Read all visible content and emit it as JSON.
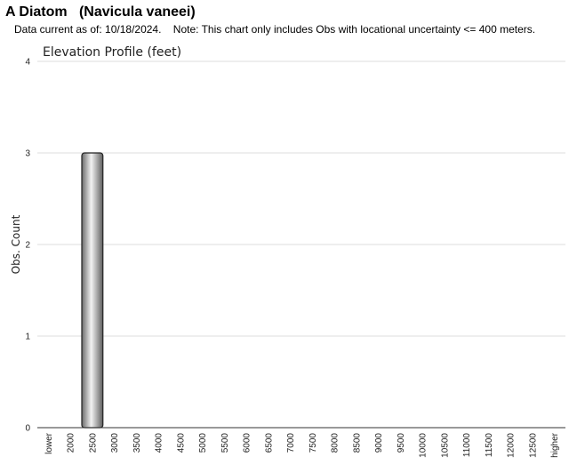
{
  "header": {
    "title": "A Diatom   (Navicula vaneei)",
    "subtitle": "Data current as of: 10/18/2024.    Note: This chart only includes Obs with locational uncertainty <= 400 meters."
  },
  "chart_data": {
    "type": "bar",
    "title": "Elevation Profile (feet)",
    "xlabel": "",
    "ylabel": "Obs. Count",
    "ylim": [
      0,
      4
    ],
    "yticks": [
      "0",
      "1",
      "2",
      "3",
      "4"
    ],
    "grid": true,
    "categories": [
      "lower",
      "2000",
      "2500",
      "3000",
      "3500",
      "4000",
      "4500",
      "5000",
      "5500",
      "6000",
      "6500",
      "7000",
      "7500",
      "8000",
      "8500",
      "9000",
      "9500",
      "10000",
      "10500",
      "11000",
      "11500",
      "12000",
      "12500",
      "higher"
    ],
    "values": [
      0,
      0,
      3,
      0,
      0,
      0,
      0,
      0,
      0,
      0,
      0,
      0,
      0,
      0,
      0,
      0,
      0,
      0,
      0,
      0,
      0,
      0,
      0,
      0
    ],
    "bar_color": "#b8b8b8"
  }
}
